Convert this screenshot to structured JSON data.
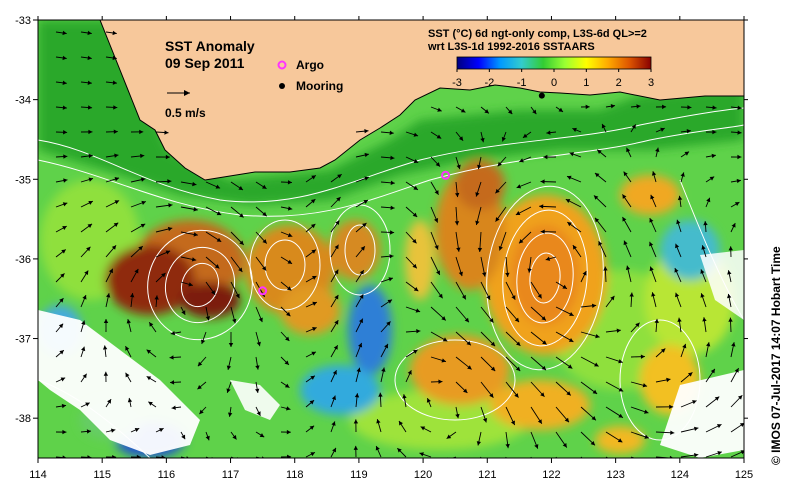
{
  "map": {
    "title": "SST Anomaly",
    "date": "09 Sep 2011",
    "vector_scale_label": "0.5 m/s",
    "legend": {
      "argo_label": "Argo",
      "mooring_label": "Mooring",
      "argo_color": "#ff33ff",
      "mooring_color": "#000000"
    },
    "colorbar": {
      "title_line1": "SST (°C) 6d ngt-only comp, L3S-6d QL>=2",
      "title_line2": "wrt L3S-1d 1992-2016 SSTAARS",
      "ticks": [
        "-3",
        "-2",
        "-1",
        "0",
        "1",
        "2",
        "3"
      ],
      "min": -3,
      "max": 3,
      "colors": [
        "#000080",
        "#0000ff",
        "#0099ff",
        "#33cccc",
        "#33cc33",
        "#99ff33",
        "#ffff00",
        "#ffaa00",
        "#dd5500",
        "#880000"
      ]
    },
    "side_label": "© IMOS 07-Jul-2017 14:07 Hobart Time",
    "axes": {
      "x_ticks": [
        "114",
        "115",
        "116",
        "117",
        "118",
        "119",
        "120",
        "121",
        "122",
        "123",
        "124",
        "125"
      ],
      "y_ticks": [
        "-33",
        "-34",
        "-35",
        "-36",
        "-37",
        "-38"
      ],
      "lon_range": [
        114,
        125
      ],
      "lat_range": [
        -38.5,
        -33
      ]
    },
    "markers": {
      "argo": [
        {
          "lon": 120.35,
          "lat": -34.95
        },
        {
          "lon": 117.5,
          "lat": -36.4
        }
      ],
      "mooring": [
        {
          "lon": 121.85,
          "lat": -33.95
        }
      ]
    },
    "colors": {
      "land": "#f7c89b",
      "coast": "#000000",
      "contour": "#ffffff",
      "arrow": "#000000"
    }
  }
}
